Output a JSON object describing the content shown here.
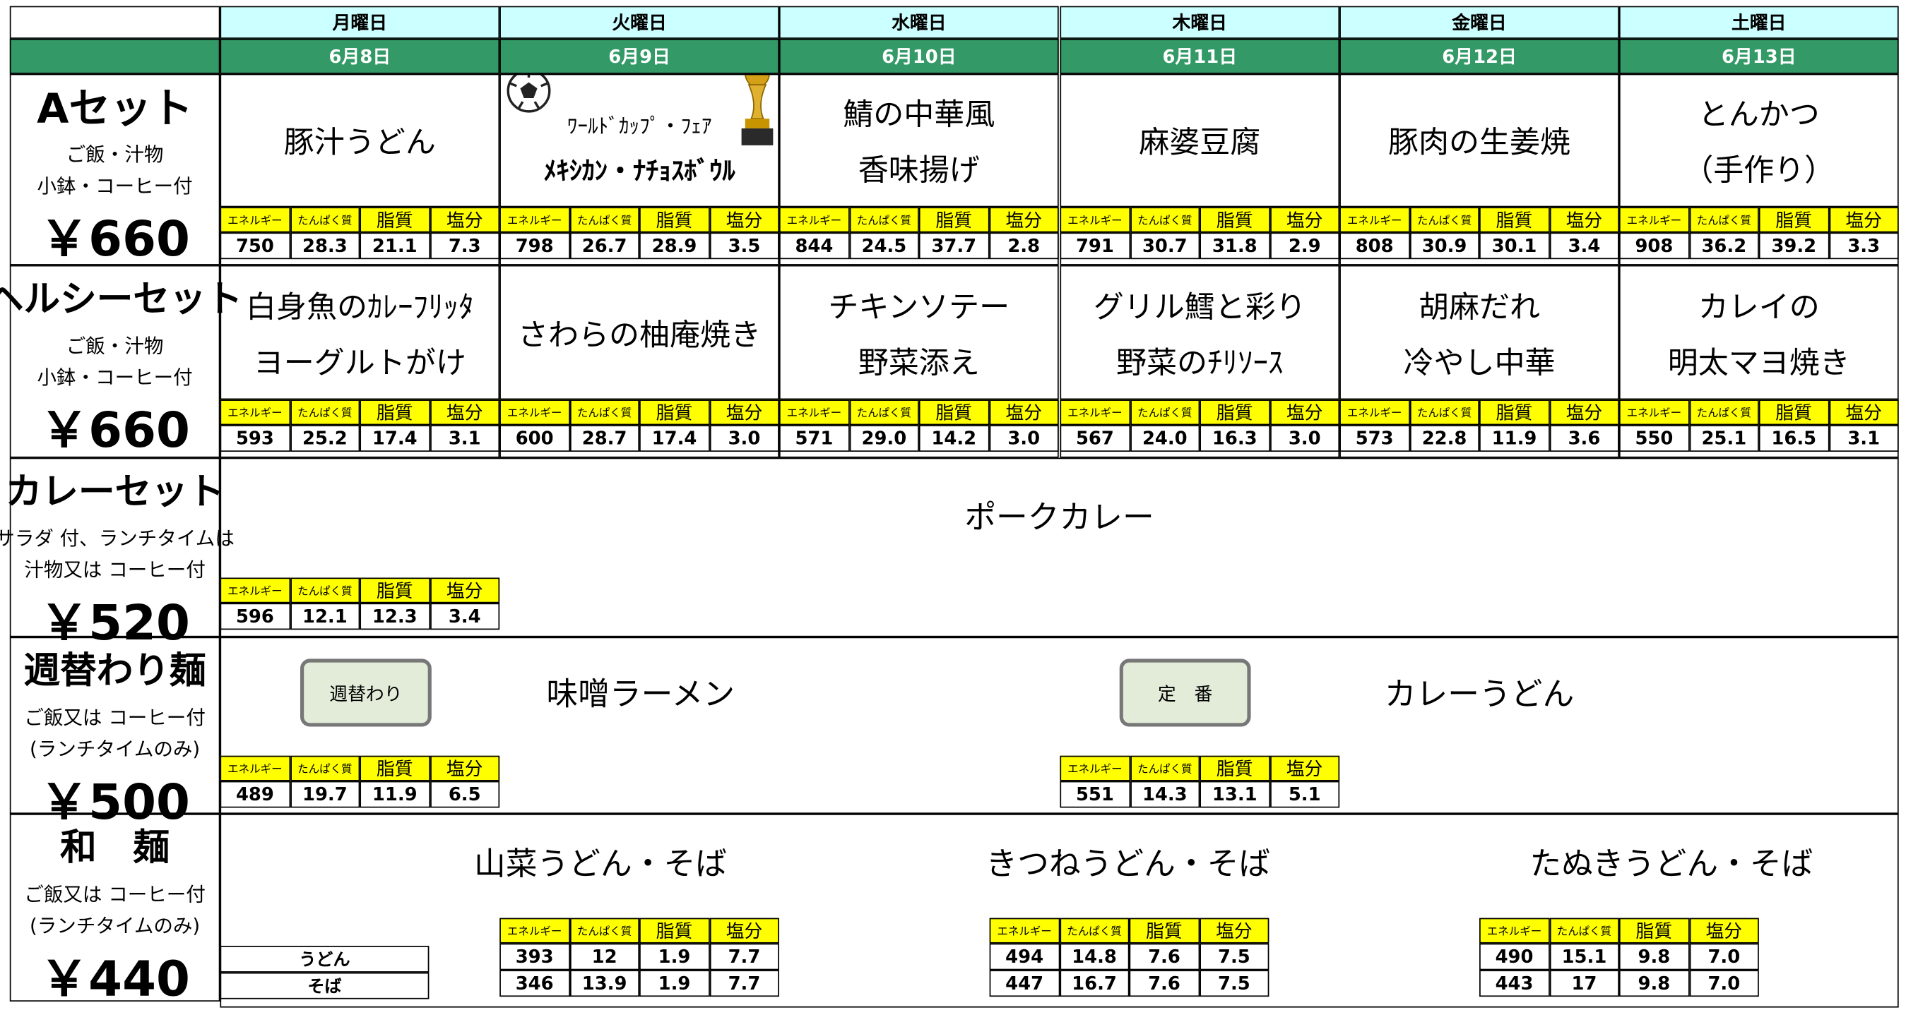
{
  "days": [
    {
      "day": "月曜日",
      "date": "6月8日"
    },
    {
      "day": "火曜日",
      "date": "6月9日"
    },
    {
      "day": "水曜日",
      "date": "6月10日"
    },
    {
      "day": "木曜日",
      "date": "6月11日"
    },
    {
      "day": "金曜日",
      "date": "6月12日"
    },
    {
      "day": "土曜日",
      "date": "6月13日"
    }
  ],
  "nutrition_labels": [
    "エネルギー",
    "たんぱく質",
    "脂質",
    "塩分"
  ],
  "sections": [
    {
      "title": "Aセット",
      "notes": [
        "ご飯・汁物",
        "小鉢・コーヒー付"
      ],
      "price": "￥660"
    },
    {
      "title": "ヘルシーセット",
      "notes": [
        "ご飯・汁物",
        "小鉢・コーヒー付"
      ],
      "price": "￥660"
    },
    {
      "title": "カレーセット",
      "notes": [
        "サラダ 付、ランチタイムは",
        "汁物又は コーヒー付"
      ],
      "price": "￥520"
    },
    {
      "title": "週替わり麺",
      "notes": [
        "ご飯又は コーヒー付",
        "(ランチタイムのみ)"
      ],
      "price": "￥500"
    },
    {
      "title": "和　麺",
      "notes": [
        "ご飯又は コーヒー付",
        "(ランチタイムのみ)"
      ],
      "price": "￥440"
    }
  ],
  "a_set": [
    {
      "dish": [
        "豚汁うどん"
      ],
      "nutrition": [
        "750",
        "28.3",
        "21.1",
        "7.3"
      ]
    },
    {
      "dish": [
        "ﾜｰﾙﾄﾞｶｯﾌﾟ・ﾌｪｱ",
        "ﾒｷｼｶﾝ・ﾅﾁｮｽﾎﾞｳﾙ"
      ],
      "nutrition": [
        "798",
        "26.7",
        "28.9",
        "3.5"
      ]
    },
    {
      "dish": [
        "鯖の中華風",
        "香味揚げ"
      ],
      "nutrition": [
        "844",
        "24.5",
        "37.7",
        "2.8"
      ]
    },
    {
      "dish": [
        "麻婆豆腐"
      ],
      "nutrition": [
        "791",
        "30.7",
        "31.8",
        "2.9"
      ]
    },
    {
      "dish": [
        "豚肉の生姜焼"
      ],
      "nutrition": [
        "808",
        "30.9",
        "30.1",
        "3.4"
      ]
    },
    {
      "dish": [
        "とんかつ",
        "（手作り）"
      ],
      "nutrition": [
        "908",
        "36.2",
        "39.2",
        "3.3"
      ]
    }
  ],
  "healthy_set": [
    {
      "dish": [
        "白身魚のｶﾚｰﾌﾘｯﾀ",
        "ヨーグルトがけ"
      ],
      "nutrition": [
        "593",
        "25.2",
        "17.4",
        "3.1"
      ]
    },
    {
      "dish": [
        "さわらの柚庵焼き"
      ],
      "nutrition": [
        "600",
        "28.7",
        "17.4",
        "3.0"
      ]
    },
    {
      "dish": [
        "チキンソテー",
        "野菜添え"
      ],
      "nutrition": [
        "571",
        "29.0",
        "14.2",
        "3.0"
      ]
    },
    {
      "dish": [
        "グリル鱈と彩り",
        "野菜のﾁﾘｿｰｽ"
      ],
      "nutrition": [
        "567",
        "24.0",
        "16.3",
        "3.0"
      ]
    },
    {
      "dish": [
        "胡麻だれ",
        "冷やし中華"
      ],
      "nutrition": [
        "573",
        "22.8",
        "11.9",
        "3.6"
      ]
    },
    {
      "dish": [
        "カレイの",
        "明太マヨ焼き"
      ],
      "nutrition": [
        "550",
        "25.1",
        "16.5",
        "3.1"
      ]
    }
  ],
  "curry_set": {
    "dish": "ポークカレー",
    "nutrition": [
      "596",
      "12.1",
      "12.3",
      "3.4"
    ]
  },
  "weekly_noodle": [
    {
      "badge": "週替わり",
      "dish": "味噌ラーメン",
      "nutrition": [
        "489",
        "19.7",
        "11.9",
        "6.5"
      ]
    },
    {
      "badge": "定　番",
      "dish": "カレーうどん",
      "nutrition": [
        "551",
        "14.3",
        "13.1",
        "5.1"
      ]
    }
  ],
  "wa_noodle": {
    "row_labels": [
      "うどん",
      "そば"
    ],
    "dishes": [
      {
        "name": "山菜うどん・そば",
        "udon": [
          "393",
          "12",
          "1.9",
          "7.7"
        ],
        "soba": [
          "346",
          "13.9",
          "1.9",
          "7.7"
        ]
      },
      {
        "name": "きつねうどん・そば",
        "udon": [
          "494",
          "14.8",
          "7.6",
          "7.5"
        ],
        "soba": [
          "447",
          "16.7",
          "7.6",
          "7.5"
        ]
      },
      {
        "name": "たぬきうどん・そば",
        "udon": [
          "490",
          "15.1",
          "9.8",
          "7.0"
        ],
        "soba": [
          "443",
          "17",
          "9.8",
          "7.0"
        ]
      }
    ]
  }
}
